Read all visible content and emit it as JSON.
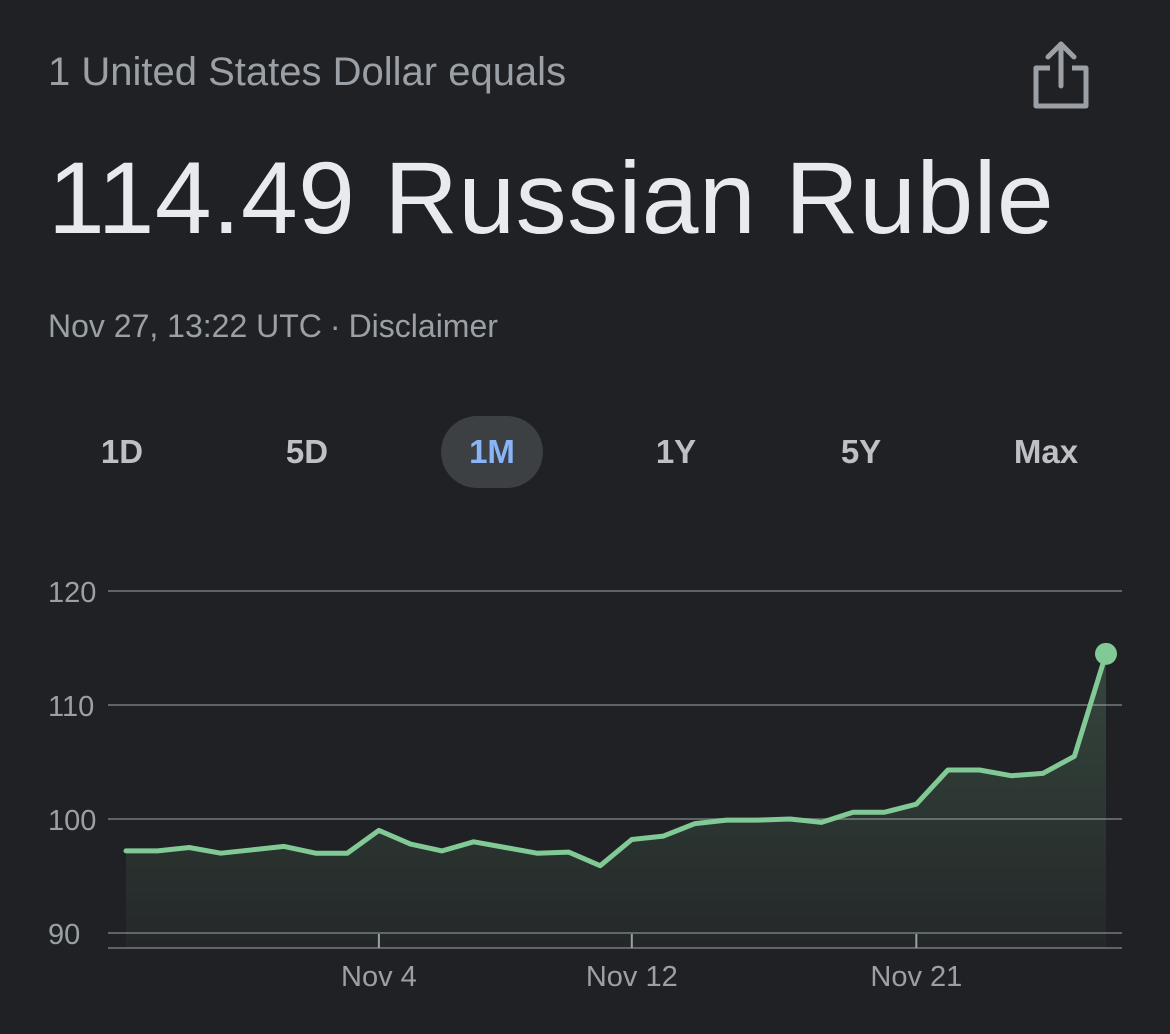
{
  "header": {
    "subtitle": "1 United States Dollar equals",
    "value": "114.49 Russian Ruble",
    "timestamp": "Nov 27, 13:22 UTC",
    "separator": "·",
    "disclaimer": "Disclaimer",
    "share_icon": "share-icon"
  },
  "range_tabs": [
    {
      "label": "1D",
      "active": false
    },
    {
      "label": "5D",
      "active": false
    },
    {
      "label": "1M",
      "active": true
    },
    {
      "label": "1Y",
      "active": false
    },
    {
      "label": "5Y",
      "active": false
    },
    {
      "label": "Max",
      "active": false
    }
  ],
  "colors": {
    "background": "#202124",
    "line": "#81c995",
    "grid": "#5f6368",
    "active_tab_bg": "#3c4043",
    "active_tab_text": "#8ab4f8"
  },
  "chart_data": {
    "type": "area",
    "y_ticks": [
      90,
      100,
      110,
      120
    ],
    "ylim": [
      90,
      120
    ],
    "x_tick_labels": [
      {
        "label": "Nov 4",
        "index": 8
      },
      {
        "label": "Nov 12",
        "index": 16
      },
      {
        "label": "Nov 21",
        "index": 25
      }
    ],
    "values": [
      97.2,
      97.2,
      97.5,
      97.0,
      97.3,
      97.6,
      97.0,
      97.0,
      99.0,
      97.8,
      97.2,
      98.0,
      97.5,
      97.0,
      97.1,
      95.9,
      98.2,
      98.5,
      99.6,
      99.9,
      99.9,
      100.0,
      99.7,
      100.6,
      100.6,
      101.3,
      104.3,
      104.3,
      103.8,
      104.0,
      105.5,
      114.49
    ],
    "grid": true
  }
}
